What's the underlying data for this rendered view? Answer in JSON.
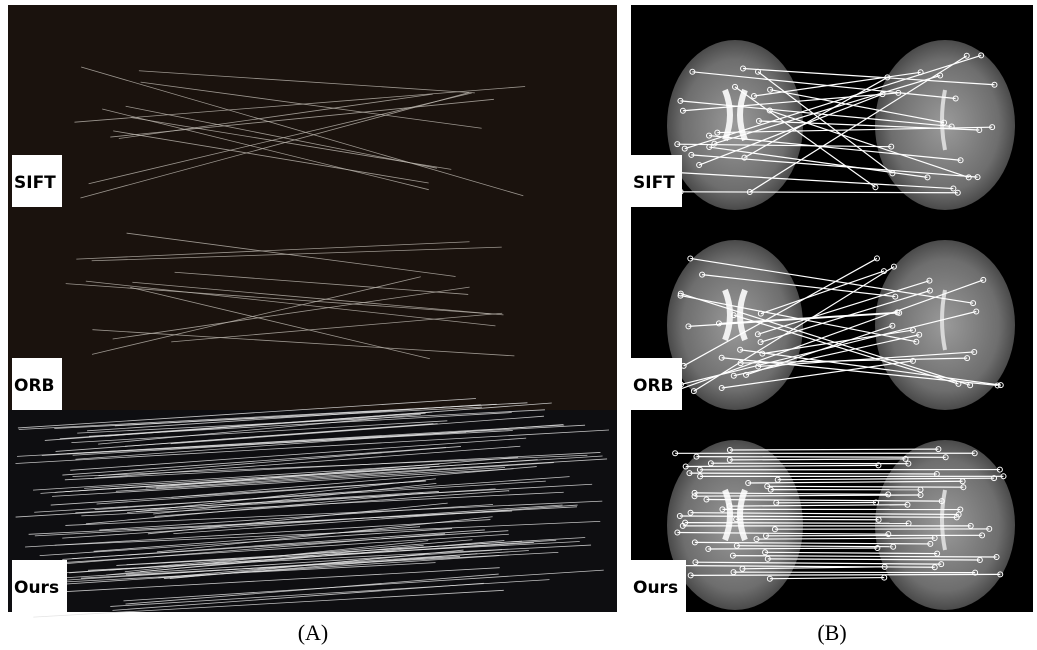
{
  "panels": [
    {
      "caption": "(A)",
      "rows": [
        "SIFT",
        "ORB",
        "Ours"
      ]
    },
    {
      "caption": "(B)",
      "rows": [
        "SIFT",
        "ORB",
        "Ours"
      ]
    }
  ]
}
